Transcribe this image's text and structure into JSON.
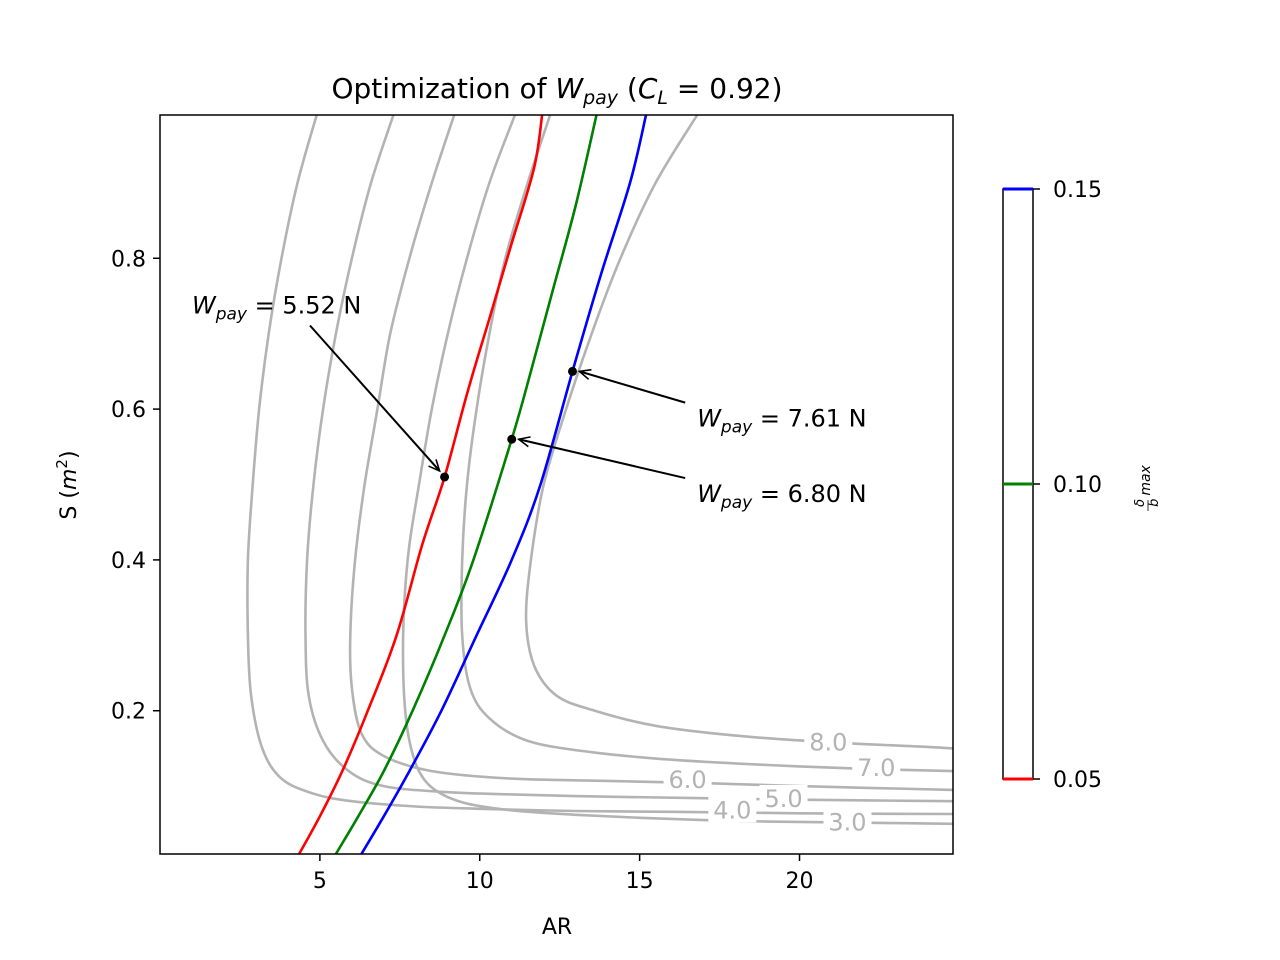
{
  "chart_data": {
    "type": "line",
    "title": "Optimization of W_pay (C_L = 0.92)",
    "title_parts": {
      "prefix": "Optimization of ",
      "var": "W",
      "var_sub": "pay",
      "mid": " (",
      "cl": "C",
      "cl_sub": "L",
      "eq": " = 0.92)"
    },
    "xlabel": "AR",
    "ylabel": "S (m2)",
    "ylabel_parts": {
      "prefix": "S (",
      "var": "m",
      "sup": "2",
      "suffix": ")"
    },
    "xlim": [
      0,
      24.8
    ],
    "ylim": [
      0.01,
      0.99
    ],
    "xticks": [
      5,
      10,
      15,
      20
    ],
    "yticks": [
      0.2,
      0.4,
      0.6,
      0.8
    ],
    "grid": false,
    "colors": {
      "contour": "#b3b3b3",
      "red": "#ff0000",
      "green": "#008000",
      "blue": "#0000ff",
      "marker": "#000000"
    },
    "contours": [
      {
        "level": 3.0,
        "label": "3.0",
        "label_at": [
          21.5,
          0.052
        ],
        "points": [
          [
            11.1,
            0.99
          ],
          [
            10.3,
            0.9
          ],
          [
            9.6,
            0.8
          ],
          [
            9.0,
            0.7
          ],
          [
            8.5,
            0.6
          ],
          [
            8.1,
            0.5
          ],
          [
            7.8,
            0.42
          ],
          [
            7.65,
            0.35
          ],
          [
            7.6,
            0.28
          ],
          [
            7.65,
            0.21
          ],
          [
            7.8,
            0.16
          ],
          [
            8.1,
            0.12
          ],
          [
            8.6,
            0.095
          ],
          [
            9.5,
            0.078
          ],
          [
            11,
            0.068
          ],
          [
            13,
            0.062
          ],
          [
            15,
            0.058
          ],
          [
            17,
            0.055
          ],
          [
            19,
            0.053
          ],
          [
            21,
            0.052
          ],
          [
            23,
            0.051
          ],
          [
            24.8,
            0.05
          ]
        ]
      },
      {
        "level": 4.0,
        "label": "4.0",
        "label_at": [
          17.9,
          0.068
        ],
        "points": [
          [
            4.9,
            0.99
          ],
          [
            4.3,
            0.9
          ],
          [
            3.8,
            0.8
          ],
          [
            3.4,
            0.7
          ],
          [
            3.1,
            0.6
          ],
          [
            2.9,
            0.5
          ],
          [
            2.75,
            0.4
          ],
          [
            2.75,
            0.3
          ],
          [
            2.85,
            0.22
          ],
          [
            3.2,
            0.15
          ],
          [
            3.8,
            0.11
          ],
          [
            4.8,
            0.09
          ],
          [
            6,
            0.08
          ],
          [
            8,
            0.073
          ],
          [
            10,
            0.07
          ],
          [
            13,
            0.067
          ],
          [
            16,
            0.066
          ],
          [
            20,
            0.064
          ],
          [
            24.8,
            0.063
          ]
        ]
      },
      {
        "level": 5.0,
        "label": "5.0",
        "label_at": [
          19.5,
          0.083
        ],
        "points": [
          [
            7.3,
            0.99
          ],
          [
            6.6,
            0.9
          ],
          [
            6.0,
            0.8
          ],
          [
            5.5,
            0.7
          ],
          [
            5.1,
            0.6
          ],
          [
            4.8,
            0.5
          ],
          [
            4.6,
            0.4
          ],
          [
            4.55,
            0.3
          ],
          [
            4.65,
            0.22
          ],
          [
            5.1,
            0.16
          ],
          [
            5.9,
            0.12
          ],
          [
            7,
            0.1
          ],
          [
            9,
            0.092
          ],
          [
            11,
            0.089
          ],
          [
            14,
            0.086
          ],
          [
            17,
            0.084
          ],
          [
            20,
            0.082
          ],
          [
            24.8,
            0.08
          ]
        ]
      },
      {
        "level": 6.0,
        "label": "6.0",
        "label_at": [
          16.5,
          0.108
        ],
        "points": [
          [
            9.2,
            0.99
          ],
          [
            8.5,
            0.9
          ],
          [
            7.8,
            0.8
          ],
          [
            7.2,
            0.7
          ],
          [
            6.8,
            0.6
          ],
          [
            6.4,
            0.5
          ],
          [
            6.1,
            0.4
          ],
          [
            5.95,
            0.3
          ],
          [
            6.0,
            0.23
          ],
          [
            6.3,
            0.17
          ],
          [
            7.0,
            0.14
          ],
          [
            8.5,
            0.12
          ],
          [
            11,
            0.11
          ],
          [
            14,
            0.107
          ],
          [
            17,
            0.104
          ],
          [
            20,
            0.1
          ],
          [
            24.8,
            0.095
          ]
        ]
      },
      {
        "level": 7.0,
        "label": "7.0",
        "label_at": [
          22.4,
          0.124
        ],
        "points": [
          [
            12.2,
            0.99
          ],
          [
            11.5,
            0.9
          ],
          [
            10.8,
            0.8
          ],
          [
            10.3,
            0.7
          ],
          [
            9.9,
            0.6
          ],
          [
            9.6,
            0.5
          ],
          [
            9.45,
            0.4
          ],
          [
            9.45,
            0.3
          ],
          [
            9.7,
            0.23
          ],
          [
            10.3,
            0.19
          ],
          [
            11.5,
            0.16
          ],
          [
            13.5,
            0.145
          ],
          [
            16,
            0.135
          ],
          [
            19,
            0.128
          ],
          [
            22,
            0.123
          ],
          [
            24.8,
            0.12
          ]
        ]
      },
      {
        "level": 8.0,
        "label": "8.0",
        "label_at": [
          20.9,
          0.158
        ],
        "points": [
          [
            16.8,
            0.99
          ],
          [
            15.5,
            0.9
          ],
          [
            14.4,
            0.8
          ],
          [
            13.5,
            0.7
          ],
          [
            12.7,
            0.6
          ],
          [
            12.0,
            0.5
          ],
          [
            11.6,
            0.4
          ],
          [
            11.45,
            0.32
          ],
          [
            11.7,
            0.26
          ],
          [
            12.4,
            0.22
          ],
          [
            13.6,
            0.2
          ],
          [
            15.5,
            0.18
          ],
          [
            18,
            0.167
          ],
          [
            21,
            0.158
          ],
          [
            24,
            0.152
          ],
          [
            24.8,
            0.15
          ]
        ]
      }
    ],
    "series": [
      {
        "name": "0.05",
        "color": "#ff0000",
        "points": [
          [
            4.35,
            0.01
          ],
          [
            5.0,
            0.06
          ],
          [
            5.7,
            0.12
          ],
          [
            6.5,
            0.2
          ],
          [
            7.4,
            0.3
          ],
          [
            8.2,
            0.42
          ],
          [
            8.9,
            0.51
          ],
          [
            9.6,
            0.62
          ],
          [
            10.3,
            0.72
          ],
          [
            11.0,
            0.82
          ],
          [
            11.7,
            0.92
          ],
          [
            11.95,
            0.99
          ]
        ]
      },
      {
        "name": "0.10",
        "color": "#008000",
        "points": [
          [
            5.5,
            0.01
          ],
          [
            6.2,
            0.06
          ],
          [
            7.0,
            0.12
          ],
          [
            7.9,
            0.2
          ],
          [
            8.9,
            0.3
          ],
          [
            9.8,
            0.4
          ],
          [
            11.0,
            0.56
          ],
          [
            11.6,
            0.65
          ],
          [
            12.3,
            0.76
          ],
          [
            13.0,
            0.87
          ],
          [
            13.65,
            0.99
          ]
        ]
      },
      {
        "name": "0.15",
        "color": "#0000ff",
        "points": [
          [
            6.3,
            0.01
          ],
          [
            7.0,
            0.06
          ],
          [
            7.8,
            0.12
          ],
          [
            8.8,
            0.2
          ],
          [
            9.9,
            0.3
          ],
          [
            11.0,
            0.4
          ],
          [
            11.9,
            0.5
          ],
          [
            12.9,
            0.65
          ],
          [
            13.8,
            0.78
          ],
          [
            14.7,
            0.9
          ],
          [
            15.2,
            0.99
          ]
        ]
      }
    ],
    "annotations": [
      {
        "value": "5.52",
        "text_prefix": "W",
        "text_sub": "pay",
        "text_suffix": " = 5.52 N",
        "point": [
          8.9,
          0.51
        ],
        "text_at": [
          1.0,
          0.74
        ]
      },
      {
        "value": "7.61",
        "text_prefix": "W",
        "text_sub": "pay",
        "text_suffix": " = 7.61 N",
        "point": [
          12.9,
          0.65
        ],
        "text_at": [
          16.8,
          0.59
        ]
      },
      {
        "value": "6.80",
        "text_prefix": "W",
        "text_sub": "pay",
        "text_suffix": " = 6.80 N",
        "point": [
          11.0,
          0.56
        ],
        "text_at": [
          16.8,
          0.49
        ]
      }
    ],
    "colorbar": {
      "ticks": [
        "0.15",
        "0.10",
        "0.05"
      ],
      "range": [
        0.05,
        0.15
      ],
      "lines": [
        {
          "value": 0.15,
          "color": "#0000ff"
        },
        {
          "value": 0.1,
          "color": "#008000"
        },
        {
          "value": 0.05,
          "color": "#ff0000"
        }
      ],
      "label": "δ/b max"
    }
  }
}
